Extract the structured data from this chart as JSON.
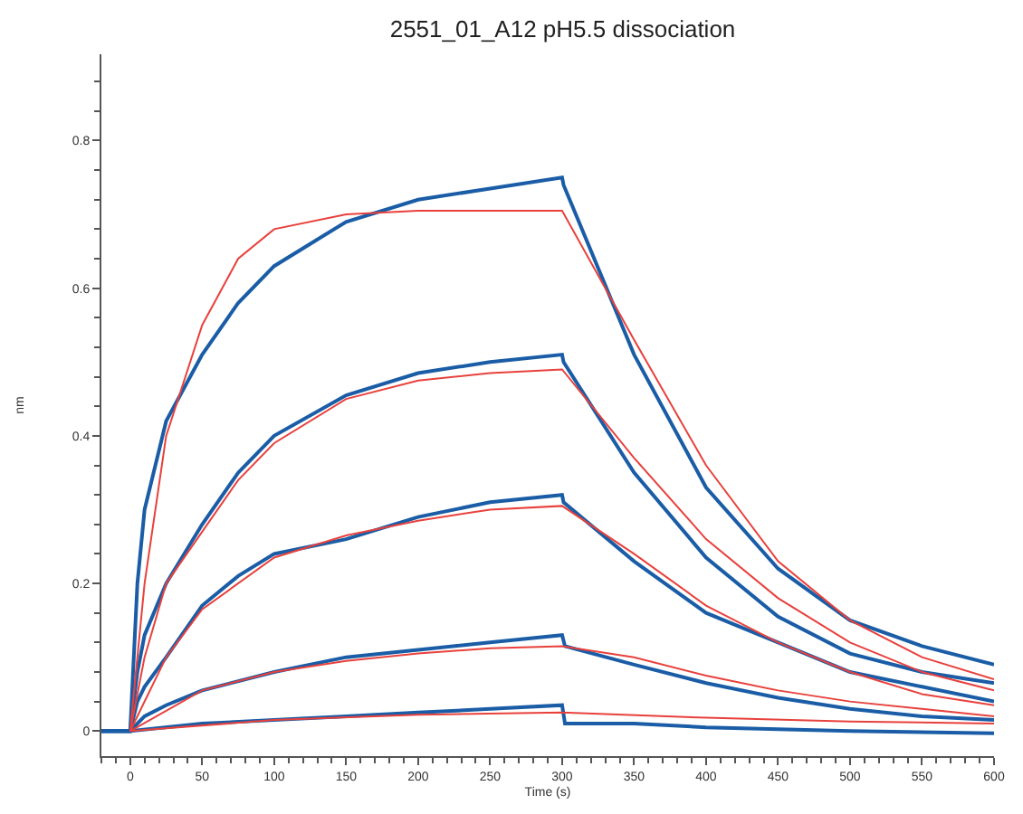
{
  "chart_data": {
    "type": "line",
    "title": "2551_01_A12 pH5.5 dissociation",
    "xlabel": "Time (s)",
    "ylabel": "nm",
    "xlim": [
      -20,
      600
    ],
    "ylim": [
      -0.034,
      0.917
    ],
    "xticks": [
      0,
      50,
      100,
      150,
      200,
      250,
      300,
      350,
      400,
      450,
      500,
      550,
      600
    ],
    "yticks": [
      0,
      0.2,
      0.4,
      0.6,
      0.8
    ],
    "marker": "none",
    "line_style": "solid",
    "series": [
      {
        "color": "#1a5da6",
        "x": [
          -20,
          0,
          5,
          10,
          25,
          50,
          75,
          100,
          150,
          200,
          250,
          300,
          301,
          350,
          400,
          450,
          500,
          550,
          600
        ],
        "values": [
          0,
          0,
          0.2,
          0.3,
          0.42,
          0.51,
          0.58,
          0.63,
          0.69,
          0.72,
          0.735,
          0.75,
          0.74,
          0.51,
          0.33,
          0.22,
          0.15,
          0.115,
          0.09
        ]
      },
      {
        "color": "#1a5da6",
        "x": [
          -20,
          0,
          5,
          10,
          25,
          50,
          75,
          100,
          150,
          200,
          250,
          300,
          301,
          350,
          400,
          450,
          500,
          550,
          600
        ],
        "values": [
          0,
          0,
          0.08,
          0.13,
          0.2,
          0.28,
          0.35,
          0.4,
          0.455,
          0.485,
          0.5,
          0.51,
          0.5,
          0.35,
          0.235,
          0.155,
          0.105,
          0.08,
          0.065
        ]
      },
      {
        "color": "#1a5da6",
        "x": [
          -20,
          0,
          5,
          10,
          25,
          50,
          75,
          100,
          150,
          200,
          250,
          300,
          301,
          350,
          400,
          450,
          500,
          550,
          600
        ],
        "values": [
          0,
          0,
          0.04,
          0.06,
          0.1,
          0.17,
          0.21,
          0.24,
          0.26,
          0.29,
          0.31,
          0.32,
          0.31,
          0.23,
          0.16,
          0.12,
          0.08,
          0.06,
          0.04
        ]
      },
      {
        "color": "#1a5da6",
        "x": [
          -20,
          0,
          10,
          25,
          50,
          100,
          150,
          200,
          250,
          300,
          302,
          350,
          400,
          450,
          500,
          550,
          600
        ],
        "values": [
          0,
          0,
          0.02,
          0.035,
          0.055,
          0.08,
          0.1,
          0.11,
          0.12,
          0.13,
          0.115,
          0.09,
          0.065,
          0.045,
          0.03,
          0.02,
          0.015
        ]
      },
      {
        "color": "#1a5da6",
        "x": [
          -20,
          0,
          50,
          100,
          150,
          200,
          250,
          300,
          302,
          350,
          400,
          500,
          600
        ],
        "values": [
          0,
          0,
          0.01,
          0.015,
          0.02,
          0.025,
          0.03,
          0.035,
          0.01,
          0.01,
          0.005,
          0,
          -0.003
        ]
      },
      {
        "color": "#e8413c",
        "x": [
          0,
          10,
          25,
          50,
          75,
          100,
          150,
          200,
          300,
          350,
          400,
          450,
          500,
          550,
          600
        ],
        "values": [
          0,
          0.2,
          0.4,
          0.55,
          0.64,
          0.68,
          0.7,
          0.705,
          0.705,
          0.53,
          0.36,
          0.23,
          0.15,
          0.1,
          0.07
        ]
      },
      {
        "color": "#e8413c",
        "x": [
          0,
          10,
          25,
          50,
          75,
          100,
          150,
          200,
          250,
          300,
          350,
          400,
          450,
          500,
          550,
          600
        ],
        "values": [
          0,
          0.1,
          0.2,
          0.27,
          0.34,
          0.39,
          0.45,
          0.475,
          0.485,
          0.49,
          0.37,
          0.26,
          0.18,
          0.12,
          0.08,
          0.055
        ]
      },
      {
        "color": "#e8413c",
        "x": [
          0,
          25,
          50,
          100,
          150,
          200,
          250,
          300,
          350,
          400,
          450,
          500,
          550,
          600
        ],
        "values": [
          0,
          0.1,
          0.165,
          0.235,
          0.265,
          0.285,
          0.3,
          0.305,
          0.24,
          0.17,
          0.12,
          0.08,
          0.05,
          0.035
        ]
      },
      {
        "color": "#e8413c",
        "x": [
          0,
          50,
          100,
          150,
          200,
          250,
          300,
          350,
          400,
          450,
          500,
          550,
          600
        ],
        "values": [
          0,
          0.055,
          0.08,
          0.095,
          0.105,
          0.112,
          0.115,
          0.1,
          0.075,
          0.055,
          0.04,
          0.03,
          0.02
        ]
      },
      {
        "color": "#e8413c",
        "x": [
          0,
          100,
          200,
          300,
          400,
          500,
          600
        ],
        "values": [
          0,
          0.015,
          0.022,
          0.025,
          0.018,
          0.013,
          0.01
        ]
      }
    ]
  }
}
